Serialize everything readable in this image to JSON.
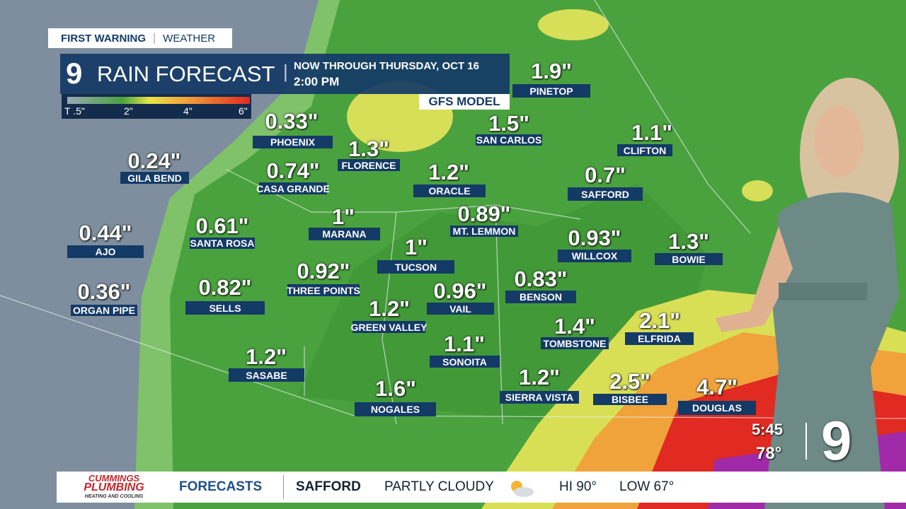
{
  "header": {
    "brand": "FIRST WARNING",
    "section": "WEATHER",
    "channel": "9",
    "title": "RAIN FORECAST",
    "period": "NOW THROUGH THURSDAY, OCT 16",
    "time": "2:00 PM",
    "model": "GFS MODEL"
  },
  "legend": {
    "labels": [
      "T .5\"",
      "2\"",
      "4\"",
      "6\""
    ]
  },
  "cities": [
    {
      "name": "PHOENIX",
      "amount": "0.33\""
    },
    {
      "name": "GILA BEND",
      "amount": "0.24\""
    },
    {
      "name": "FLORENCE",
      "amount": "1.3\""
    },
    {
      "name": "CASA GRANDE",
      "amount": "0.74\""
    },
    {
      "name": "ORACLE",
      "amount": "1.2\""
    },
    {
      "name": "SAN CARLOS",
      "amount": "1.5\""
    },
    {
      "name": "PINETOP",
      "amount": "1.9\""
    },
    {
      "name": "CLIFTON",
      "amount": "1.1\""
    },
    {
      "name": "SAFFORD",
      "amount": "0.7\""
    },
    {
      "name": "AJO",
      "amount": "0.44\""
    },
    {
      "name": "SANTA ROSA",
      "amount": "0.61\""
    },
    {
      "name": "MARANA",
      "amount": "1\""
    },
    {
      "name": "MT. LEMMON",
      "amount": "0.89\""
    },
    {
      "name": "TUCSON",
      "amount": "1\""
    },
    {
      "name": "WILLCOX",
      "amount": "0.93\""
    },
    {
      "name": "BOWIE",
      "amount": "1.3\""
    },
    {
      "name": "ORGAN PIPE",
      "amount": "0.36\""
    },
    {
      "name": "SELLS",
      "amount": "0.82\""
    },
    {
      "name": "THREE POINTS",
      "amount": "0.92\""
    },
    {
      "name": "VAIL",
      "amount": "0.96\""
    },
    {
      "name": "BENSON",
      "amount": "0.83\""
    },
    {
      "name": "GREEN VALLEY",
      "amount": "1.2\""
    },
    {
      "name": "ELFRIDA",
      "amount": "2.1\""
    },
    {
      "name": "TOMBSTONE",
      "amount": "1.4\""
    },
    {
      "name": "SONOITA",
      "amount": "1.1\""
    },
    {
      "name": "SASABE",
      "amount": "1.2\""
    },
    {
      "name": "NOGALES",
      "amount": "1.6\""
    },
    {
      "name": "SIERRA VISTA",
      "amount": "1.2\""
    },
    {
      "name": "BISBEE",
      "amount": "2.5\""
    },
    {
      "name": "DOUGLAS",
      "amount": "4.7\""
    }
  ],
  "ticker": {
    "sponsor": "CUMMINGS",
    "sponsor_line2": "PLUMBING",
    "sponsor_tagline": "HEATING AND COOLING",
    "segment": "FORECASTS",
    "location": "SAFFORD",
    "condition": "PARTLY CLOUDY",
    "high": "HI 90°",
    "low": "LOW 67°"
  },
  "bug": {
    "time": "5:45",
    "temperature": "78°",
    "channel": "9"
  }
}
